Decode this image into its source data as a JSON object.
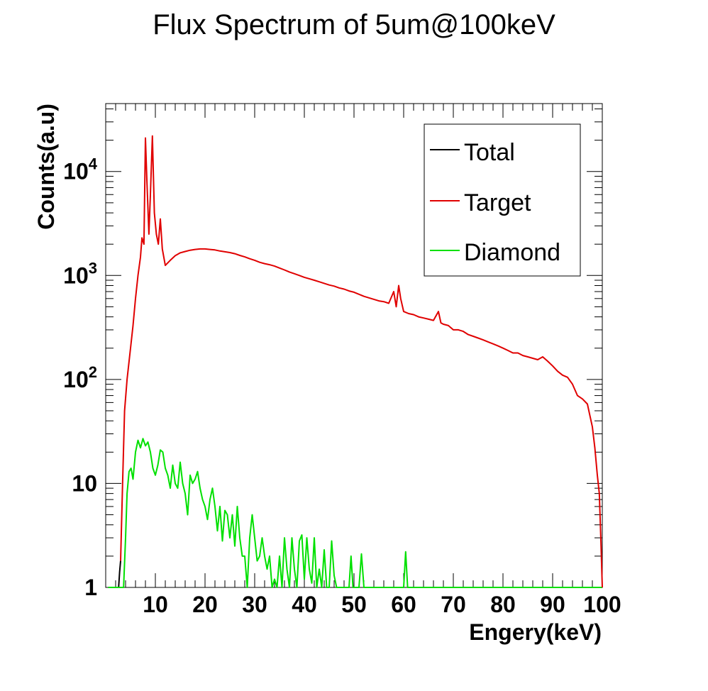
{
  "chart_data": {
    "type": "line",
    "title": "Flux Spectrum of 5um@100keV",
    "xlabel": "Engery(keV)",
    "ylabel": "Counts(a.u)",
    "xlim": [
      0,
      100
    ],
    "ylim": [
      1,
      45000
    ],
    "yscale": "log",
    "x_ticks": [
      10,
      20,
      30,
      40,
      50,
      60,
      70,
      80,
      90,
      100
    ],
    "y_ticks": [
      {
        "value": 1,
        "base": "1",
        "exp": ""
      },
      {
        "value": 10,
        "base": "10",
        "exp": ""
      },
      {
        "value": 100,
        "base": "10",
        "exp": "2"
      },
      {
        "value": 1000,
        "base": "10",
        "exp": "3"
      },
      {
        "value": 10000,
        "base": "10",
        "exp": "4"
      }
    ],
    "legend": {
      "position": "top-right"
    },
    "series": [
      {
        "name": "Total",
        "color": "#000000",
        "points": [
          [
            0.5,
            1
          ],
          [
            1.5,
            1
          ],
          [
            2,
            1
          ],
          [
            2.2,
            0.9
          ],
          [
            2.6,
            1
          ],
          [
            2.8,
            1.4
          ],
          [
            3,
            1.8
          ]
        ]
      },
      {
        "name": "Target",
        "color": "#e00000",
        "points": [
          [
            3,
            1.8
          ],
          [
            3.4,
            10
          ],
          [
            3.8,
            50
          ],
          [
            4.3,
            100
          ],
          [
            5,
            200
          ],
          [
            5.5,
            330
          ],
          [
            6,
            600
          ],
          [
            6.5,
            1000
          ],
          [
            7,
            1500
          ],
          [
            7.3,
            2300
          ],
          [
            7.7,
            2000
          ],
          [
            8,
            21000
          ],
          [
            8.3,
            8000
          ],
          [
            8.7,
            2500
          ],
          [
            9,
            6000
          ],
          [
            9.4,
            22000
          ],
          [
            9.8,
            4000
          ],
          [
            10.2,
            2500
          ],
          [
            10.6,
            2000
          ],
          [
            11,
            3500
          ],
          [
            11.4,
            1800
          ],
          [
            12,
            1250
          ],
          [
            13,
            1400
          ],
          [
            14,
            1550
          ],
          [
            15,
            1650
          ],
          [
            16,
            1700
          ],
          [
            17,
            1750
          ],
          [
            18,
            1780
          ],
          [
            19,
            1800
          ],
          [
            20,
            1800
          ],
          [
            21,
            1780
          ],
          [
            22,
            1760
          ],
          [
            23,
            1720
          ],
          [
            24,
            1690
          ],
          [
            25,
            1660
          ],
          [
            26,
            1620
          ],
          [
            27,
            1560
          ],
          [
            28,
            1510
          ],
          [
            29,
            1450
          ],
          [
            30,
            1400
          ],
          [
            31,
            1340
          ],
          [
            32,
            1300
          ],
          [
            33,
            1270
          ],
          [
            34,
            1230
          ],
          [
            35,
            1180
          ],
          [
            36,
            1130
          ],
          [
            37,
            1080
          ],
          [
            38,
            1040
          ],
          [
            39,
            1000
          ],
          [
            40,
            960
          ],
          [
            41,
            930
          ],
          [
            42,
            900
          ],
          [
            43,
            870
          ],
          [
            44,
            840
          ],
          [
            45,
            810
          ],
          [
            46,
            790
          ],
          [
            47,
            760
          ],
          [
            48,
            740
          ],
          [
            49,
            710
          ],
          [
            50,
            690
          ],
          [
            51,
            660
          ],
          [
            52,
            630
          ],
          [
            53,
            610
          ],
          [
            54,
            590
          ],
          [
            55,
            570
          ],
          [
            56,
            560
          ],
          [
            57,
            540
          ],
          [
            58,
            700
          ],
          [
            58.5,
            500
          ],
          [
            59,
            800
          ],
          [
            59.4,
            600
          ],
          [
            60,
            450
          ],
          [
            61,
            430
          ],
          [
            62,
            420
          ],
          [
            63,
            400
          ],
          [
            64,
            390
          ],
          [
            65,
            380
          ],
          [
            66,
            370
          ],
          [
            67,
            450
          ],
          [
            67.5,
            350
          ],
          [
            68,
            340
          ],
          [
            69,
            330
          ],
          [
            70,
            300
          ],
          [
            71,
            300
          ],
          [
            72,
            290
          ],
          [
            73,
            270
          ],
          [
            74,
            260
          ],
          [
            75,
            250
          ],
          [
            76,
            240
          ],
          [
            77,
            230
          ],
          [
            78,
            220
          ],
          [
            79,
            210
          ],
          [
            80,
            200
          ],
          [
            81,
            190
          ],
          [
            82,
            180
          ],
          [
            83,
            180
          ],
          [
            84,
            170
          ],
          [
            85,
            165
          ],
          [
            86,
            160
          ],
          [
            87,
            155
          ],
          [
            88,
            165
          ],
          [
            89,
            150
          ],
          [
            90,
            135
          ],
          [
            91,
            120
          ],
          [
            92,
            110
          ],
          [
            93,
            105
          ],
          [
            94,
            90
          ],
          [
            95,
            70
          ],
          [
            96,
            65
          ],
          [
            97,
            58
          ],
          [
            97.5,
            45
          ],
          [
            98,
            35
          ],
          [
            98.5,
            22
          ],
          [
            99,
            12
          ],
          [
            99.4,
            8
          ],
          [
            99.7,
            3
          ],
          [
            100,
            1
          ]
        ]
      },
      {
        "name": "Diamond",
        "color": "#00e000",
        "points": [
          [
            0.5,
            1
          ],
          [
            3,
            1
          ],
          [
            3.6,
            1
          ],
          [
            4,
            3
          ],
          [
            4.3,
            8
          ],
          [
            4.7,
            13
          ],
          [
            5.1,
            14
          ],
          [
            5.5,
            11
          ],
          [
            6,
            20
          ],
          [
            6.5,
            26
          ],
          [
            7,
            22
          ],
          [
            7.5,
            27
          ],
          [
            8,
            23
          ],
          [
            8.5,
            25
          ],
          [
            9,
            20
          ],
          [
            9.5,
            14
          ],
          [
            10,
            12
          ],
          [
            10.5,
            15
          ],
          [
            11,
            21
          ],
          [
            11.5,
            20
          ],
          [
            12,
            14
          ],
          [
            12.5,
            12
          ],
          [
            13,
            9
          ],
          [
            13.5,
            15
          ],
          [
            14,
            10
          ],
          [
            14.5,
            9
          ],
          [
            15,
            16
          ],
          [
            15.5,
            10
          ],
          [
            16,
            8
          ],
          [
            16.5,
            5
          ],
          [
            17,
            12
          ],
          [
            17.5,
            10
          ],
          [
            18,
            11
          ],
          [
            18.5,
            13
          ],
          [
            19,
            9
          ],
          [
            19.5,
            7
          ],
          [
            20,
            6
          ],
          [
            20.5,
            4.5
          ],
          [
            21,
            7
          ],
          [
            21.5,
            9
          ],
          [
            22,
            6
          ],
          [
            22.5,
            3.5
          ],
          [
            23,
            6
          ],
          [
            23.5,
            2.8
          ],
          [
            24,
            5.5
          ],
          [
            24.5,
            5
          ],
          [
            25,
            3
          ],
          [
            25.5,
            5
          ],
          [
            26,
            2.5
          ],
          [
            26.5,
            6
          ],
          [
            27,
            3
          ],
          [
            27.5,
            2
          ],
          [
            28,
            2
          ],
          [
            28.5,
            1
          ],
          [
            29,
            3
          ],
          [
            29.5,
            5
          ],
          [
            30,
            3
          ],
          [
            30.5,
            1.8
          ],
          [
            31,
            2
          ],
          [
            31.5,
            3
          ],
          [
            32,
            2
          ],
          [
            32.5,
            1.5
          ],
          [
            33,
            2
          ],
          [
            33.5,
            1
          ],
          [
            34,
            1.2
          ],
          [
            34.5,
            1
          ],
          [
            35,
            2
          ],
          [
            35.5,
            1
          ],
          [
            36,
            3
          ],
          [
            36.5,
            1.5
          ],
          [
            37,
            1
          ],
          [
            37.5,
            3
          ],
          [
            38,
            1.5
          ],
          [
            38.5,
            1
          ],
          [
            39,
            2.8
          ],
          [
            39.5,
            3.2
          ],
          [
            40,
            1.2
          ],
          [
            40.5,
            3
          ],
          [
            41,
            1.5
          ],
          [
            41.5,
            1.1
          ],
          [
            42,
            3
          ],
          [
            42.5,
            1
          ],
          [
            43,
            1.5
          ],
          [
            43.5,
            1
          ],
          [
            44,
            2.3
          ],
          [
            44.5,
            1
          ],
          [
            45,
            1
          ],
          [
            45.5,
            2.8
          ],
          [
            46,
            1.3
          ],
          [
            46.5,
            1
          ],
          [
            47,
            1
          ],
          [
            49,
            1
          ],
          [
            49.4,
            2
          ],
          [
            49.8,
            1
          ],
          [
            51,
            1
          ],
          [
            51.5,
            2.1
          ],
          [
            52,
            1
          ],
          [
            60,
            1
          ],
          [
            60.4,
            2.2
          ],
          [
            60.8,
            1
          ],
          [
            100,
            1
          ]
        ]
      }
    ]
  }
}
